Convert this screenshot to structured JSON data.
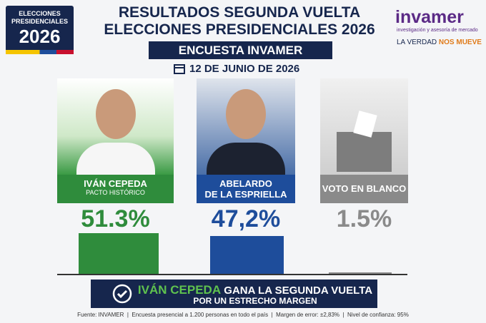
{
  "badge": {
    "line1": "ELECCIONES",
    "line2": "PRESIDENCIALES",
    "year": "2026"
  },
  "title": [
    "RESULTADOS SEGUNDA VUELTA",
    "ELECCIONES PRESIDENCIALES 2026"
  ],
  "subtitle": "ENCUESTA INVAMER",
  "date": "12 DE JUNIO DE 2026",
  "logo": {
    "name": "invamer",
    "tagline": "investigación y asesoría de mercado",
    "slogan": "LA VERDAD",
    "slogan_highlight": "NOS MUEVE"
  },
  "chart_data": {
    "type": "bar",
    "categories": [
      "IVÁN CEPEDA",
      "ABELARDO\nDE LA ESPRIELLA",
      "VOTO EN BLANCO"
    ],
    "category_subtitles": [
      "PACTO HISTÓRICO",
      null,
      null
    ],
    "values": [
      51.3,
      47.2,
      1.5
    ],
    "value_labels": [
      "51.3%",
      "47,2%",
      "1.5%"
    ],
    "colors": [
      "#2f8c3c",
      "#1e4d9b",
      "#8a8a8a"
    ]
  },
  "banner": {
    "highlight": "IVÁN CEPEDA",
    "text": "GANA LA SEGUNDA VUELTA",
    "line2": "POR UN ESTRECHO MARGEN"
  },
  "footer": [
    "Fuente: INVAMER",
    "Encuesta presencial a 1.200 personas en todo el país",
    "Margen de error: ±2,83%",
    "Nivel de confianza: 95%"
  ]
}
